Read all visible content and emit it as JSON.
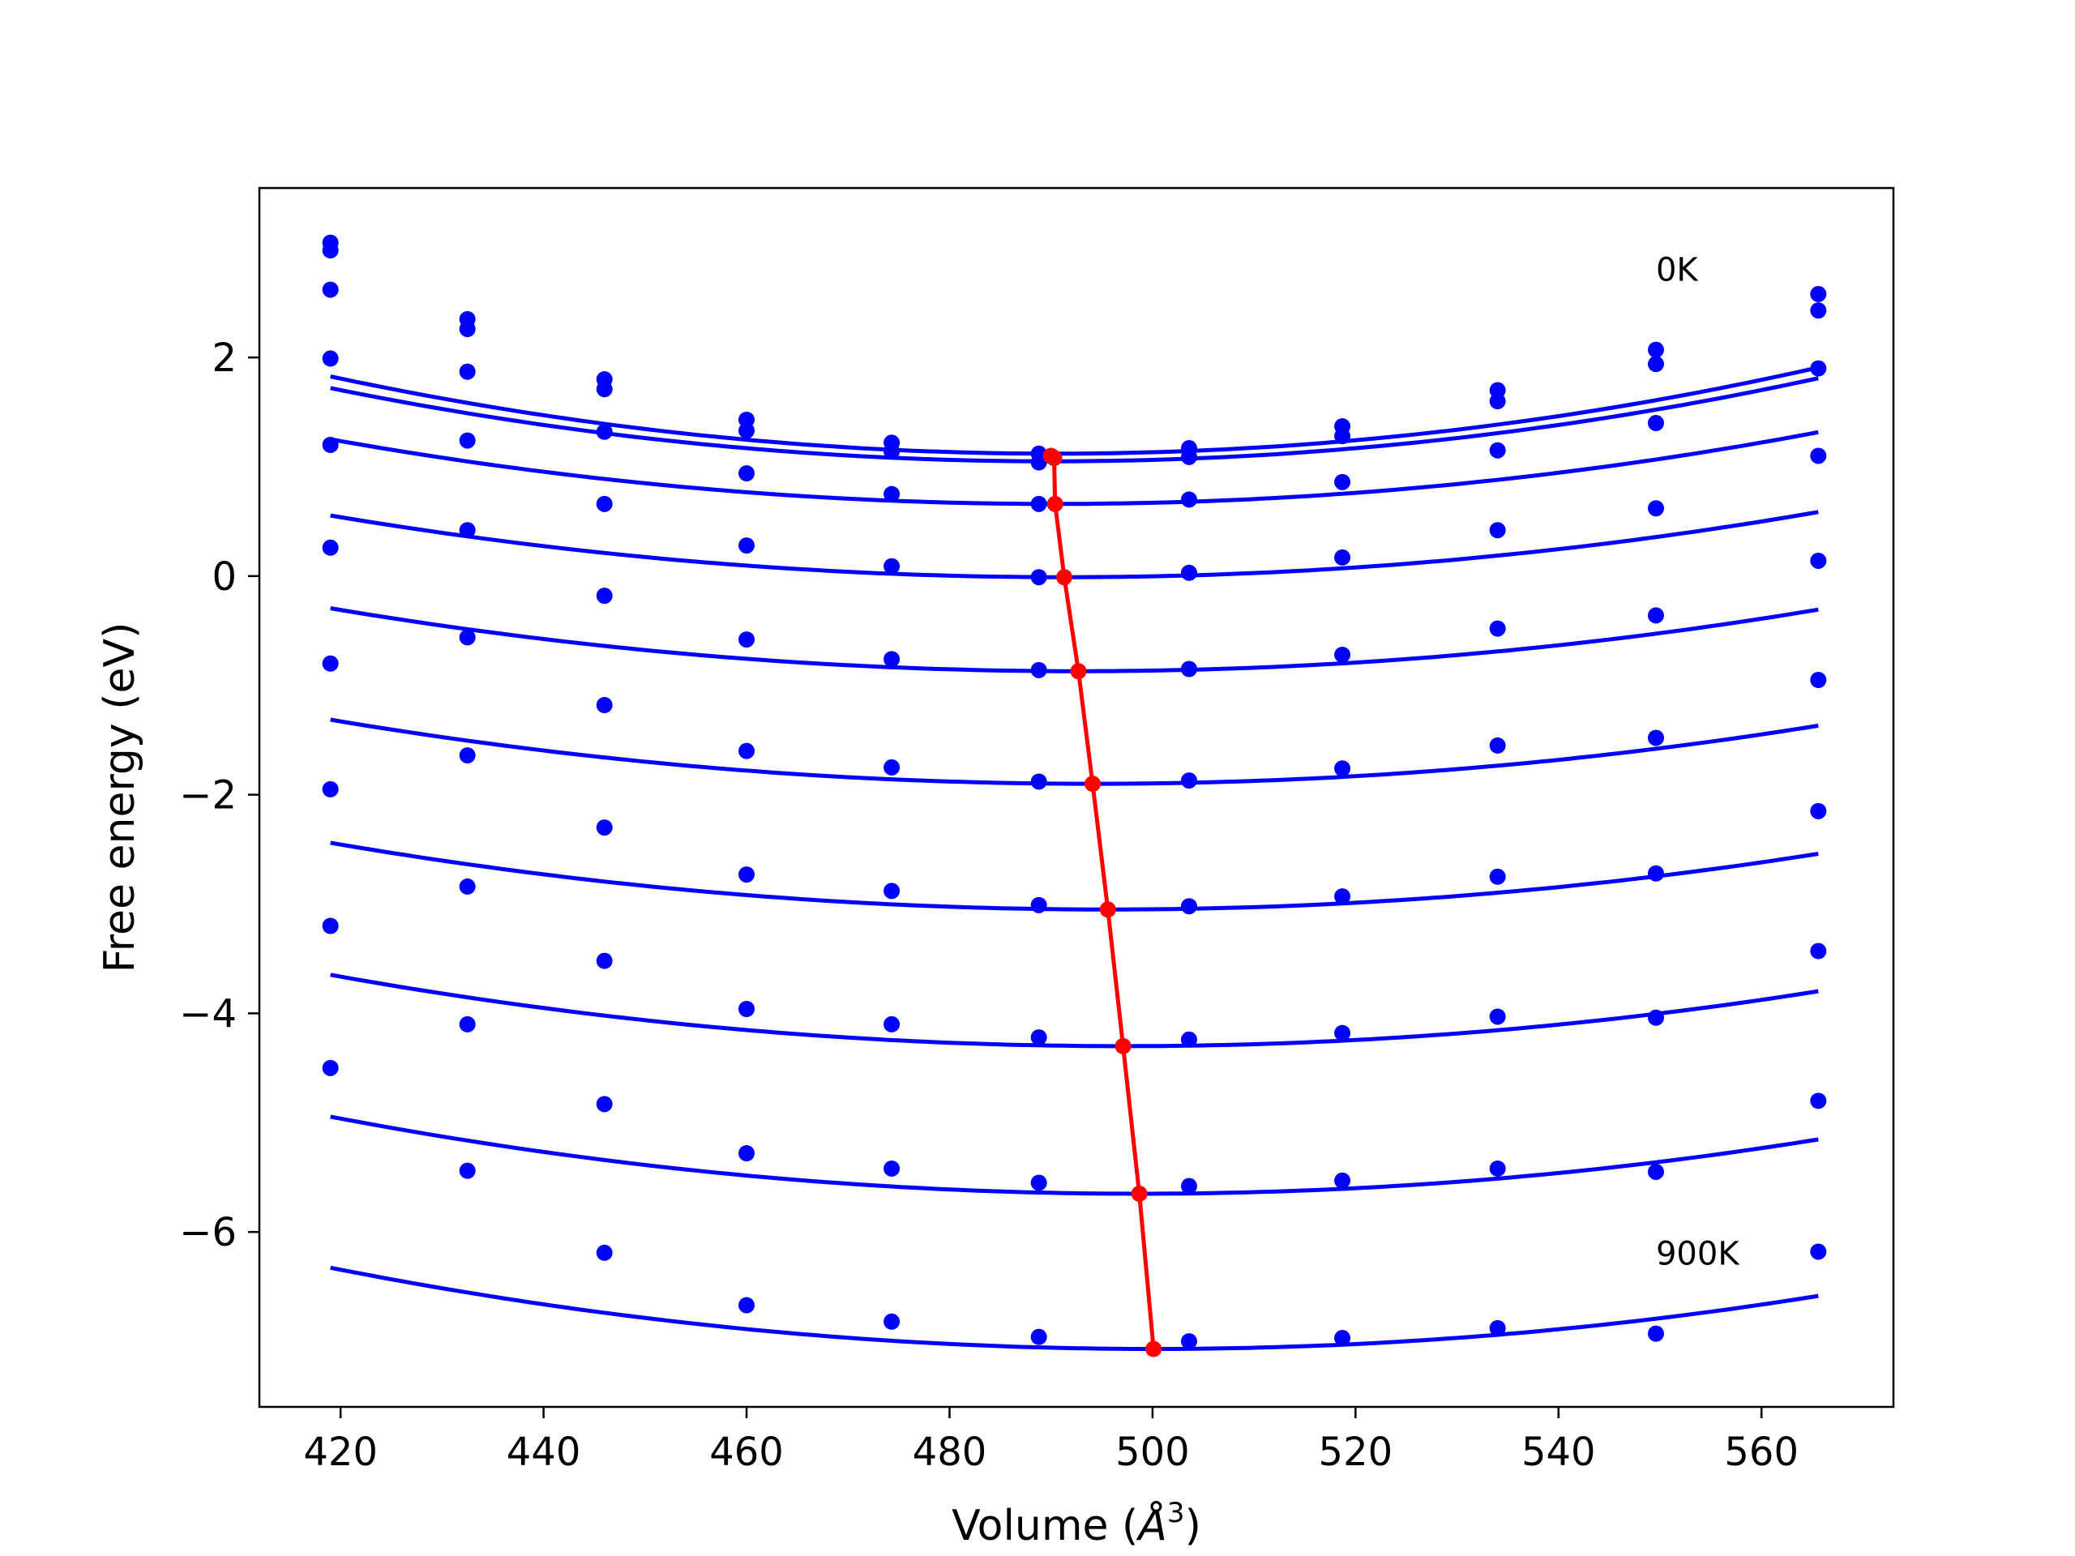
{
  "chart_data": {
    "type": "line",
    "xlabel": "Volume (",
    "xlabel_symbol": "Å",
    "xlabel_sup": "3",
    "xlabel_tail": ")",
    "ylabel": "Free energy (eV)",
    "xlim": [
      412,
      573
    ],
    "ylim": [
      -7.6,
      3.55
    ],
    "xticks": [
      420,
      440,
      460,
      480,
      500,
      520,
      540,
      560
    ],
    "yticks": [
      -6,
      -4,
      -2,
      0,
      2
    ],
    "ytick_labels": [
      "−6",
      "−4",
      "−2",
      "0",
      "2"
    ],
    "grid": false,
    "annotations": [
      {
        "text": "0K",
        "x": 549.6,
        "y": 2.7
      },
      {
        "text": "900K",
        "x": 549.6,
        "y": -6.3
      }
    ],
    "colors": {
      "data": "#0000ff",
      "minima": "#ff0000",
      "axes": "#000000"
    },
    "x": [
      419,
      432.5,
      446,
      460,
      474.3,
      488.8,
      503.6,
      518.7,
      534,
      549.6,
      565.6
    ],
    "series": [
      {
        "values": [
          3.05,
          2.35,
          1.8,
          1.43,
          1.22,
          1.12,
          1.17,
          1.37,
          1.7,
          2.07,
          2.58
        ],
        "fit": {
          "a": 0.000139,
          "vmin": 490.3,
          "emin": 1.12
        }
      },
      {
        "values": [
          2.98,
          2.26,
          1.71,
          1.33,
          1.14,
          1.04,
          1.09,
          1.28,
          1.6,
          1.94,
          2.43
        ],
        "fit": {
          "a": 0.000133,
          "vmin": 490.0,
          "emin": 1.05
        }
      },
      {
        "values": [
          2.62,
          1.87,
          1.32,
          0.94,
          0.75,
          0.66,
          0.7,
          0.86,
          1.15,
          1.4,
          1.9
        ],
        "fit": {
          "a": 0.000116,
          "vmin": 490.4,
          "emin": 0.66
        }
      },
      {
        "values": [
          1.99,
          1.24,
          0.66,
          0.28,
          0.09,
          -0.01,
          0.03,
          0.17,
          0.42,
          0.62,
          1.1
        ],
        "fit": {
          "a": 0.000108,
          "vmin": 491.3,
          "emin": -0.01
        }
      },
      {
        "values": [
          1.2,
          0.42,
          -0.18,
          -0.58,
          -0.76,
          -0.86,
          -0.85,
          -0.72,
          -0.48,
          -0.36,
          0.14
        ],
        "fit": {
          "a": 0.000106,
          "vmin": 492.7,
          "emin": -0.87
        }
      },
      {
        "values": [
          0.26,
          -0.56,
          -1.18,
          -1.6,
          -1.75,
          -1.88,
          -1.87,
          -1.76,
          -1.55,
          -1.48,
          -0.95
        ],
        "fit": {
          "a": 0.000104,
          "vmin": 494.1,
          "emin": -1.9
        }
      },
      {
        "values": [
          -0.8,
          -1.64,
          -2.3,
          -2.73,
          -2.88,
          -3.01,
          -3.02,
          -2.93,
          -2.75,
          -2.72,
          -2.15
        ],
        "fit": {
          "a": 0.000104,
          "vmin": 495.6,
          "emin": -3.05
        }
      },
      {
        "values": [
          -1.95,
          -2.84,
          -3.52,
          -3.96,
          -4.1,
          -4.22,
          -4.24,
          -4.18,
          -4.03,
          -4.04,
          -3.43
        ],
        "fit": {
          "a": 0.000107,
          "vmin": 497.1,
          "emin": -4.3
        }
      },
      {
        "values": [
          -3.2,
          -4.1,
          -4.83,
          -5.28,
          -5.42,
          -5.55,
          -5.58,
          -5.53,
          -5.42,
          -5.45,
          -4.8
        ],
        "fit": {
          "a": 0.000111,
          "vmin": 498.7,
          "emin": -5.65
        }
      },
      {
        "values": [
          -4.5,
          -5.44,
          -6.19,
          -6.67,
          -6.82,
          -6.96,
          -7.0,
          -6.97,
          -6.88,
          -6.93,
          -6.18
        ],
        "fit": {
          "a": 0.000113,
          "vmin": 500.1,
          "emin": -7.07
        }
      }
    ],
    "minima": {
      "x": [
        490.0,
        490.3,
        490.4,
        491.3,
        492.7,
        494.1,
        495.6,
        497.1,
        498.7,
        500.1
      ],
      "y": [
        1.1,
        1.08,
        0.66,
        -0.01,
        -0.87,
        -1.9,
        -3.05,
        -4.3,
        -5.65,
        -7.07
      ]
    }
  }
}
